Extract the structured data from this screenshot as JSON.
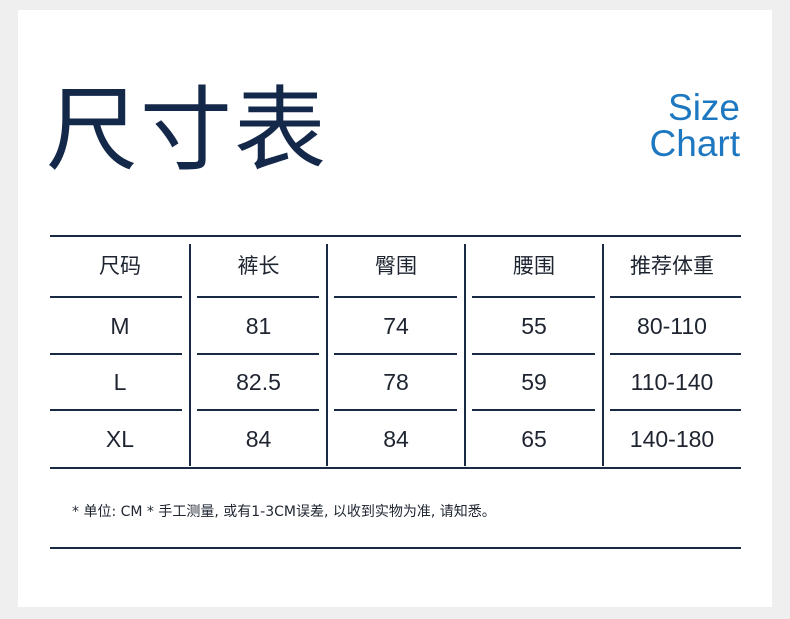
{
  "title_cn": "尺寸表",
  "title_en_line1": "Size",
  "title_en_line2": "Chart",
  "colors": {
    "navy": "#14284a",
    "accent_blue": "#1d78c1"
  },
  "table": {
    "headers": [
      "尺码",
      "裤长",
      "臀围",
      "腰围",
      "推荐体重"
    ],
    "rows": [
      [
        "M",
        "81",
        "74",
        "55",
        "80-110"
      ],
      [
        "L",
        "82.5",
        "78",
        "59",
        "110-140"
      ],
      [
        "XL",
        "84",
        "84",
        "65",
        "140-180"
      ]
    ]
  },
  "footnote": "* 单位: CM * 手工测量, 或有1-3CM误差, 以收到实物为准, 请知悉。"
}
